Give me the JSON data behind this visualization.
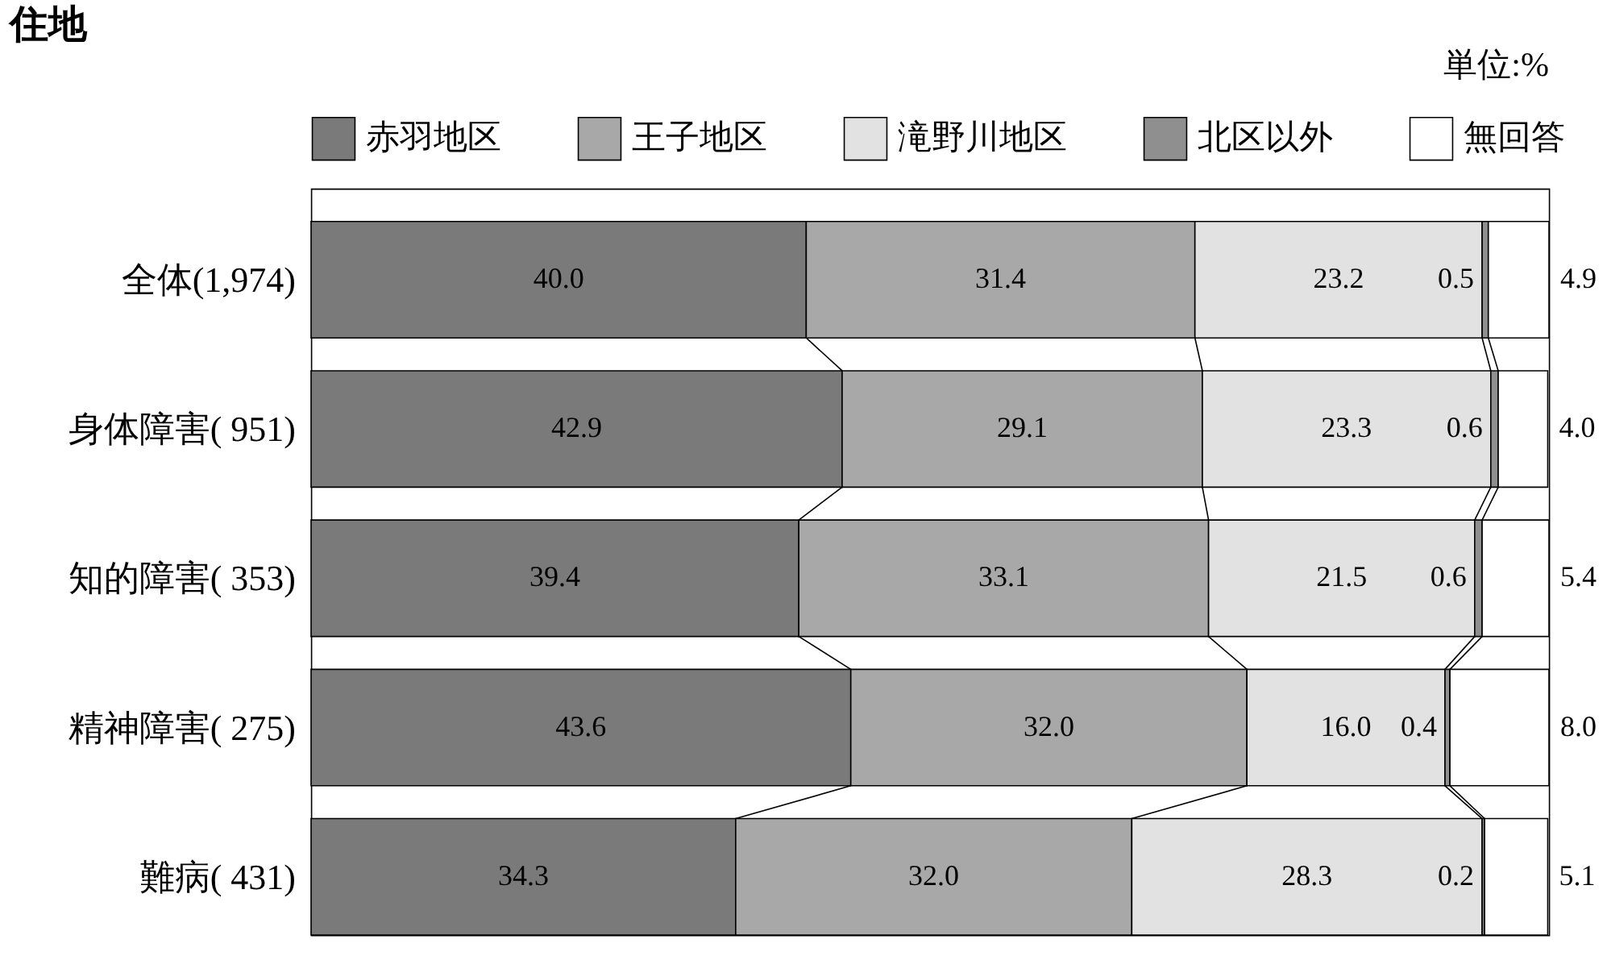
{
  "chart_data": {
    "type": "bar",
    "orientation": "horizontal",
    "stacked": true,
    "title": "住地",
    "annotations": [
      "単位:%"
    ],
    "categories": [
      "全体(1,974)",
      "身体障害( 951)",
      "知的障害( 353)",
      "精神障害( 275)",
      "難病( 431)"
    ],
    "series": [
      {
        "name": "赤羽地区",
        "color": "#7a7a7a",
        "values": [
          40.0,
          42.9,
          39.4,
          43.6,
          34.3
        ],
        "value_labels": [
          "40.0",
          "42.9",
          "39.4",
          "43.6",
          "34.3"
        ]
      },
      {
        "name": "王子地区",
        "color": "#a8a8a8",
        "values": [
          31.4,
          29.1,
          33.1,
          32.0,
          32.0
        ],
        "value_labels": [
          "31.4",
          "29.1",
          "33.1",
          "32.0",
          "32.0"
        ]
      },
      {
        "name": "滝野川地区",
        "color": "#e2e2e2",
        "values": [
          23.2,
          23.3,
          21.5,
          16.0,
          28.3
        ],
        "value_labels": [
          "23.2",
          "23.3",
          "21.5",
          "16.0",
          "28.3"
        ]
      },
      {
        "name": "北区以外",
        "color": "#8f8f8f",
        "values": [
          0.5,
          0.6,
          0.6,
          0.4,
          0.2
        ],
        "value_labels": [
          "0.5",
          "0.6",
          "0.6",
          "0.4",
          "0.2"
        ]
      },
      {
        "name": "無回答",
        "color": "#ffffff",
        "values": [
          4.9,
          4.0,
          5.4,
          8.0,
          5.1
        ],
        "value_labels": [
          "4.9",
          "4.0",
          "5.4",
          "8.0",
          "5.1"
        ]
      }
    ],
    "xlim": [
      0,
      100
    ],
    "tick_labels": "y",
    "legend": "top"
  }
}
